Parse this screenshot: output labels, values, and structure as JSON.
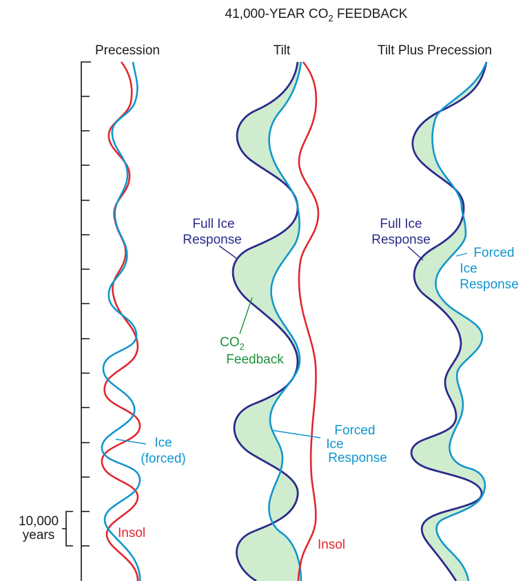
{
  "title": {
    "prefix": "41,000-YEAR CO",
    "subscript": "2",
    "suffix": " FEEDBACK"
  },
  "columns": {
    "precession": "Precession",
    "tilt": "Tilt",
    "tilt_plus_precession": "Tilt Plus Precession"
  },
  "scale": {
    "value": "10,000",
    "unit": "years"
  },
  "labels": {
    "precession_ice": {
      "line1": "Ice",
      "line2": "(forced)"
    },
    "precession_insol": "Insol",
    "tilt_full_ice": {
      "line1": "Full  Ice",
      "line2": "Response"
    },
    "tilt_co2": {
      "prefix": "CO",
      "subscript": "2",
      "line2": "Feedback"
    },
    "tilt_forced_ice": {
      "line1": "Forced",
      "line2": "Ice",
      "line3": "Response"
    },
    "tilt_insol": "Insol",
    "tpp_full_ice": {
      "line1": "Full  Ice",
      "line2": "Response"
    },
    "tpp_forced_ice": {
      "line1": "Forced",
      "line2": "Ice",
      "line3": "Response"
    }
  },
  "colors": {
    "navy": "#2a2a8a",
    "cyan": "#0f96cf",
    "red": "#e2262e",
    "green": "#1e8f3c",
    "fill": "#cfeccf"
  }
}
